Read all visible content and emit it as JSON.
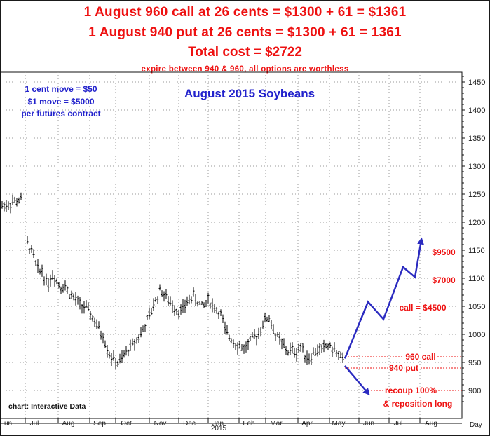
{
  "header": {
    "line1": "1 August 960 call at 26 cents = $1300 + 61 = $1361",
    "line2": "1 August 940 put at 26 cents = $1300 + 61 = 1361",
    "line3": "Total cost = $2722",
    "line4": "expire between 940 & 960, all options are worthless"
  },
  "colors": {
    "red": "#ee1111",
    "blue": "#2222cc",
    "bars": "#000000",
    "grid": "#9a9a9a"
  },
  "chart_data": {
    "type": "bar",
    "title": "August 2015 Soybeans",
    "source": "chart: Interactive Data",
    "notes": [
      "1 cent move = $50",
      "$1 move = $5000",
      "per futures contract"
    ],
    "y_ticks": [
      900,
      950,
      1000,
      1050,
      1100,
      1150,
      1200,
      1250,
      1300,
      1350,
      1400,
      1450
    ],
    "ylim": [
      870,
      1470
    ],
    "x_months": [
      "un",
      "Jul",
      "Aug",
      "Sep",
      "Oct",
      "Nov",
      "Dec",
      "Jan",
      "Feb",
      "Mar",
      "Apr",
      "May",
      "Jun",
      "Jul",
      "Aug"
    ],
    "x_year": "2015",
    "x_unit": "Day",
    "grid": true,
    "price_path": [
      [
        0,
        1225
      ],
      [
        6,
        1232
      ],
      [
        12,
        1230
      ],
      [
        18,
        1236
      ],
      [
        24,
        1238
      ],
      [
        30,
        1240
      ],
      [
        36,
        1170
      ],
      [
        40,
        1160
      ],
      [
        44,
        1150
      ],
      [
        48,
        1140
      ],
      [
        52,
        1120
      ],
      [
        56,
        1112
      ],
      [
        60,
        1115
      ],
      [
        64,
        1098
      ],
      [
        68,
        1090
      ],
      [
        72,
        1100
      ],
      [
        76,
        1108
      ],
      [
        80,
        1098
      ],
      [
        84,
        1090
      ],
      [
        88,
        1085
      ],
      [
        92,
        1088
      ],
      [
        96,
        1078
      ],
      [
        100,
        1072
      ],
      [
        104,
        1066
      ],
      [
        108,
        1062
      ],
      [
        112,
        1055
      ],
      [
        116,
        1052
      ],
      [
        120,
        1050
      ],
      [
        124,
        1044
      ],
      [
        128,
        1038
      ],
      [
        132,
        1030
      ],
      [
        136,
        1020
      ],
      [
        140,
        1012
      ],
      [
        144,
        1002
      ],
      [
        148,
        995
      ],
      [
        152,
        978
      ],
      [
        156,
        965
      ],
      [
        160,
        958
      ],
      [
        164,
        952
      ],
      [
        168,
        948
      ],
      [
        172,
        952
      ],
      [
        176,
        960
      ],
      [
        180,
        968
      ],
      [
        184,
        975
      ],
      [
        188,
        980
      ],
      [
        192,
        986
      ],
      [
        196,
        992
      ],
      [
        200,
        1000
      ],
      [
        204,
        1008
      ],
      [
        208,
        1020
      ],
      [
        212,
        1030
      ],
      [
        216,
        1040
      ],
      [
        220,
        1058
      ],
      [
        224,
        1064
      ],
      [
        228,
        1080
      ],
      [
        232,
        1075
      ],
      [
        236,
        1068
      ],
      [
        240,
        1060
      ],
      [
        244,
        1055
      ],
      [
        248,
        1050
      ],
      [
        252,
        1045
      ],
      [
        256,
        1040
      ],
      [
        260,
        1045
      ],
      [
        264,
        1050
      ],
      [
        268,
        1060
      ],
      [
        272,
        1065
      ],
      [
        276,
        1068
      ],
      [
        280,
        1062
      ],
      [
        284,
        1056
      ],
      [
        288,
        1050
      ],
      [
        292,
        1052
      ],
      [
        296,
        1064
      ],
      [
        300,
        1058
      ],
      [
        304,
        1050
      ],
      [
        308,
        1046
      ],
      [
        312,
        1040
      ],
      [
        316,
        1035
      ],
      [
        320,
        1010
      ],
      [
        324,
        1000
      ],
      [
        328,
        995
      ],
      [
        332,
        990
      ],
      [
        336,
        985
      ],
      [
        340,
        980
      ],
      [
        344,
        978
      ],
      [
        348,
        975
      ],
      [
        352,
        980
      ],
      [
        356,
        985
      ],
      [
        360,
        992
      ],
      [
        364,
        995
      ],
      [
        368,
        1000
      ],
      [
        372,
        1012
      ],
      [
        376,
        1020
      ],
      [
        380,
        1030
      ],
      [
        384,
        1028
      ],
      [
        388,
        1018
      ],
      [
        392,
        1000
      ],
      [
        396,
        995
      ],
      [
        400,
        988
      ],
      [
        404,
        980
      ],
      [
        408,
        972
      ],
      [
        412,
        968
      ],
      [
        416,
        975
      ],
      [
        420,
        968
      ],
      [
        424,
        970
      ],
      [
        428,
        978
      ],
      [
        432,
        975
      ],
      [
        436,
        962
      ],
      [
        440,
        958
      ],
      [
        444,
        960
      ],
      [
        448,
        968
      ],
      [
        452,
        970
      ],
      [
        456,
        975
      ],
      [
        460,
        972
      ],
      [
        464,
        978
      ],
      [
        468,
        980
      ],
      [
        472,
        976
      ],
      [
        476,
        972
      ],
      [
        480,
        968
      ],
      [
        484,
        962
      ],
      [
        488,
        952
      ],
      [
        492,
        950
      ]
    ],
    "annotations": [
      {
        "label": "960 call",
        "price": 960
      },
      {
        "label": "940 put",
        "price": 940
      },
      {
        "label": "recoup 100%",
        "price": 900
      },
      {
        "label": "& reposition long",
        "price": 878
      },
      {
        "label": "call = $4500",
        "price": 1045
      },
      {
        "label": "$7000",
        "price": 1095
      },
      {
        "label": "$9500",
        "price": 1150
      }
    ],
    "arrow_up_path": [
      [
        492,
        957
      ],
      [
        525,
        1058
      ],
      [
        547,
        1027
      ],
      [
        575,
        1120
      ],
      [
        592,
        1102
      ],
      [
        601,
        1168
      ]
    ],
    "arrow_down_path": [
      [
        492,
        944
      ],
      [
        525,
        895
      ]
    ]
  }
}
